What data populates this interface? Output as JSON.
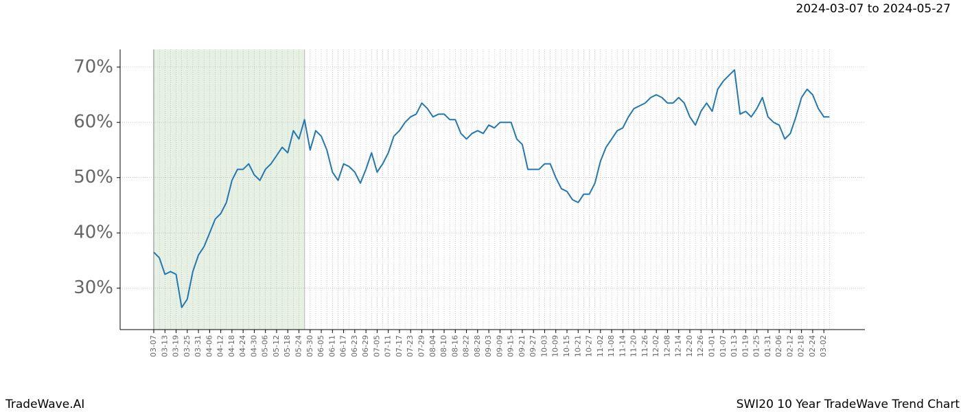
{
  "chart_data": {
    "type": "line",
    "title": "SWI20 10 Year TradeWave Trend Chart",
    "subtitle": "2024-03-07 to 2024-05-27",
    "brand": "TradeWave.AI",
    "categories": [
      "03-07",
      null,
      "03-13",
      null,
      "03-19",
      null,
      "03-25",
      null,
      "03-31",
      null,
      "04-06",
      null,
      "04-12",
      null,
      "04-18",
      null,
      "04-24",
      null,
      "04-30",
      null,
      "05-06",
      null,
      "05-12",
      null,
      "05-18",
      null,
      "05-24",
      null,
      "05-30",
      null,
      "06-05",
      null,
      "06-11",
      null,
      "06-17",
      null,
      "06-23",
      null,
      "06-29",
      null,
      "07-05",
      null,
      "07-11",
      null,
      "07-17",
      null,
      "07-23",
      null,
      "07-29",
      null,
      "08-04",
      null,
      "08-10",
      null,
      "08-16",
      null,
      "08-22",
      null,
      "08-28",
      null,
      "09-03",
      null,
      "09-09",
      null,
      "09-15",
      null,
      "09-21",
      null,
      "09-27",
      null,
      "10-03",
      null,
      "10-09",
      null,
      "10-15",
      null,
      "10-21",
      null,
      "10-27",
      null,
      "11-02",
      null,
      "11-08",
      null,
      "11-14",
      null,
      "11-20",
      null,
      "11-26",
      null,
      "12-02",
      null,
      "12-08",
      null,
      "12-14",
      null,
      "12-20",
      null,
      "12-26",
      null,
      "01-01",
      null,
      "01-07",
      null,
      "01-13",
      null,
      "01-19",
      null,
      "01-25",
      null,
      "01-31",
      null,
      "02-06",
      null,
      "02-12",
      null,
      "02-18",
      null,
      "02-24",
      null,
      "03-02",
      null
    ],
    "series": [
      {
        "color": "#1f77b4",
        "values": [
          36.5,
          35.5,
          32.5,
          33,
          32.5,
          26.5,
          28,
          33,
          36,
          37.5,
          40,
          42.5,
          43.5,
          45.5,
          49.5,
          51.5,
          51.5,
          52.5,
          50.5,
          49.5,
          51.5,
          52.5,
          54,
          55.5,
          54.5,
          58.5,
          57,
          60.5,
          55,
          58.5,
          57.5,
          55,
          51,
          49.5,
          52.5,
          52,
          51,
          49,
          51.5,
          54.5,
          51,
          52.5,
          54.5,
          57.5,
          58.5,
          60,
          61,
          61.5,
          63.5,
          62.5,
          61,
          61.5,
          61.5,
          60.5,
          60.5,
          58,
          57,
          58,
          58.5,
          58,
          59.5,
          59,
          60,
          60,
          60,
          57,
          56,
          51.5,
          51.5,
          51.5,
          52.5,
          52.5,
          50,
          48,
          47.5,
          46,
          45.5,
          47,
          47,
          49,
          53,
          55.5,
          57,
          58.5,
          59,
          61,
          62.5,
          63,
          63.5,
          64.5,
          65,
          64.5,
          63.5,
          63.5,
          64.5,
          63.5,
          61,
          59.5,
          62,
          63.5,
          62,
          66,
          67.5,
          68.5,
          69.5,
          61.5,
          62,
          61,
          62.5,
          64.5,
          61,
          60,
          59.5,
          57,
          58,
          61,
          64.5,
          66,
          65,
          62.5,
          61,
          61
        ]
      }
    ],
    "shade_categories": [
      0,
      27
    ],
    "shade_color": "#e6f1e4",
    "ylim": [
      22.5,
      73.2
    ],
    "yticks": [
      {
        "value": 30,
        "label": "30%"
      },
      {
        "value": 40,
        "label": "40%"
      },
      {
        "value": 50,
        "label": "50%"
      },
      {
        "value": 60,
        "label": "60%"
      },
      {
        "value": 70,
        "label": "70%"
      }
    ],
    "grid": true
  }
}
